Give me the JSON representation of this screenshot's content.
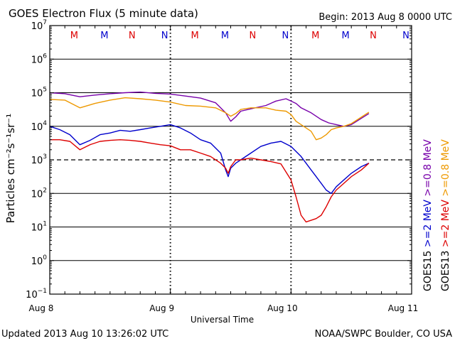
{
  "chart_data": {
    "type": "line",
    "title": "GOES Electron Flux (5 minute data)",
    "begin_label": "Begin: 2013 Aug 8 0000 UTC",
    "xlabel": "Universal Time",
    "ylabel": "Particles cm⁻²s⁻¹sr⁻¹",
    "xlim": [
      0,
      72
    ],
    "x_unit": "hours since 2013 Aug 8 0000 UTC",
    "ylim": [
      -1,
      7
    ],
    "y_scale": "log10",
    "x_ticks": [
      {
        "x": 0,
        "label": "Aug 8"
      },
      {
        "x": 24,
        "label": "Aug 9"
      },
      {
        "x": 48,
        "label": "Aug 10"
      },
      {
        "x": 72,
        "label": "Aug 11"
      }
    ],
    "y_ticks": [
      {
        "exp": -1,
        "label": "10",
        "sup": "−1"
      },
      {
        "exp": 0,
        "label": "10",
        "sup": "0"
      },
      {
        "exp": 1,
        "label": "10",
        "sup": "1"
      },
      {
        "exp": 2,
        "label": "10",
        "sup": "2"
      },
      {
        "exp": 3,
        "label": "10",
        "sup": "3"
      },
      {
        "exp": 4,
        "label": "10",
        "sup": "4"
      },
      {
        "exp": 5,
        "label": "10",
        "sup": "5"
      },
      {
        "exp": 6,
        "label": "10",
        "sup": "6"
      },
      {
        "exp": 7,
        "label": "10",
        "sup": "7"
      }
    ],
    "threshold": {
      "log_value": 3,
      "style": "dashed"
    },
    "markers": [
      {
        "x": 6,
        "label": "M",
        "color": "#dd0000"
      },
      {
        "x": 12,
        "label": "M",
        "color": "#0000cc"
      },
      {
        "x": 17.5,
        "label": "N",
        "color": "#dd0000"
      },
      {
        "x": 24,
        "label": "N",
        "color": "#0000cc"
      },
      {
        "x": 30,
        "label": "M",
        "color": "#dd0000"
      },
      {
        "x": 36,
        "label": "M",
        "color": "#0000cc"
      },
      {
        "x": 41.5,
        "label": "N",
        "color": "#dd0000"
      },
      {
        "x": 48,
        "label": "N",
        "color": "#0000cc"
      },
      {
        "x": 54,
        "label": "M",
        "color": "#dd0000"
      },
      {
        "x": 60,
        "label": "M",
        "color": "#0000cc"
      },
      {
        "x": 65.5,
        "label": "N",
        "color": "#dd0000"
      },
      {
        "x": 72,
        "label": "N",
        "color": "#0000cc"
      }
    ],
    "legend_left": [
      {
        "label": ">=0.8 MeV",
        "color": "#7700aa"
      },
      {
        "label": ">=2 MeV",
        "color": "#0000cc"
      },
      {
        "label": "GOES15",
        "color": "#000000"
      }
    ],
    "legend_right": [
      {
        "label": ">=0.8 MeV",
        "color": "#ee9900"
      },
      {
        "label": ">=2 MeV",
        "color": "#dd0000"
      },
      {
        "label": "GOES13",
        "color": "#000000"
      }
    ],
    "series": [
      {
        "name": "GOES15 >=0.8 MeV",
        "color": "#7700aa",
        "x": [
          0,
          3,
          6,
          9,
          12,
          15,
          18,
          21,
          24,
          27,
          30,
          33,
          35,
          36,
          37,
          38,
          40,
          43,
          45,
          47,
          48,
          49,
          50,
          52,
          54,
          55.5,
          57,
          58.5,
          60,
          63.5
        ],
        "y": [
          5.0,
          4.97,
          4.88,
          4.93,
          4.97,
          5.0,
          5.02,
          4.98,
          4.96,
          4.9,
          4.84,
          4.7,
          4.4,
          4.15,
          4.28,
          4.45,
          4.52,
          4.62,
          4.75,
          4.82,
          4.75,
          4.68,
          4.55,
          4.4,
          4.2,
          4.1,
          4.05,
          4.0,
          4.05,
          4.38
        ]
      },
      {
        "name": "GOES13 >=0.8 MeV",
        "color": "#ee9900",
        "x": [
          0,
          3,
          6,
          9,
          12,
          15,
          18,
          21,
          24,
          27,
          30,
          33,
          35,
          36,
          37,
          38,
          40,
          43,
          45,
          47,
          48,
          49,
          50,
          52,
          53,
          54,
          55,
          56,
          57,
          58.5,
          60,
          63.5
        ],
        "y": [
          4.8,
          4.78,
          4.55,
          4.68,
          4.78,
          4.85,
          4.82,
          4.78,
          4.72,
          4.62,
          4.6,
          4.55,
          4.4,
          4.3,
          4.38,
          4.5,
          4.55,
          4.55,
          4.48,
          4.45,
          4.35,
          4.15,
          4.05,
          3.85,
          3.6,
          3.65,
          3.75,
          3.9,
          3.95,
          4.0,
          4.08,
          4.42
        ]
      },
      {
        "name": "GOES15 >=2 MeV",
        "color": "#0000cc",
        "x": [
          0,
          2,
          4,
          6,
          8,
          10,
          12,
          14,
          16,
          18,
          20,
          22,
          24,
          26,
          28,
          30,
          32,
          34,
          35,
          35.5,
          36,
          37,
          38,
          40,
          42,
          44,
          46,
          48,
          50,
          52,
          53,
          54,
          55,
          56,
          57,
          58.5,
          60,
          62,
          63.5
        ],
        "y": [
          4.0,
          3.9,
          3.75,
          3.45,
          3.58,
          3.75,
          3.8,
          3.88,
          3.85,
          3.9,
          3.95,
          4.0,
          4.05,
          3.95,
          3.8,
          3.6,
          3.5,
          3.2,
          2.7,
          2.5,
          2.75,
          2.9,
          3.0,
          3.2,
          3.4,
          3.5,
          3.55,
          3.4,
          3.1,
          2.7,
          2.5,
          2.3,
          2.1,
          2.0,
          2.2,
          2.4,
          2.6,
          2.8,
          2.9
        ]
      },
      {
        "name": "GOES13 >=2 MeV",
        "color": "#dd0000",
        "x": [
          0,
          2,
          4,
          6,
          8,
          10,
          12,
          14,
          16,
          18,
          20,
          22,
          24,
          26,
          28,
          30,
          32,
          34,
          35,
          35.5,
          36,
          37,
          38,
          40,
          42,
          44,
          46,
          48,
          49,
          50,
          51,
          52,
          53,
          54,
          55,
          56,
          57,
          58.5,
          60,
          62,
          63.5
        ],
        "y": [
          3.6,
          3.6,
          3.55,
          3.3,
          3.45,
          3.55,
          3.58,
          3.6,
          3.58,
          3.55,
          3.5,
          3.45,
          3.42,
          3.3,
          3.3,
          3.2,
          3.1,
          2.9,
          2.75,
          2.6,
          2.8,
          3.0,
          3.0,
          3.05,
          3.0,
          2.95,
          2.88,
          2.4,
          1.9,
          1.35,
          1.15,
          1.2,
          1.25,
          1.35,
          1.6,
          1.9,
          2.1,
          2.3,
          2.5,
          2.7,
          2.9
        ]
      }
    ]
  },
  "footer": {
    "updated": "Updated 2013 Aug 10 13:26:02 UTC",
    "credit": "NOAA/SWPC Boulder, CO USA"
  }
}
